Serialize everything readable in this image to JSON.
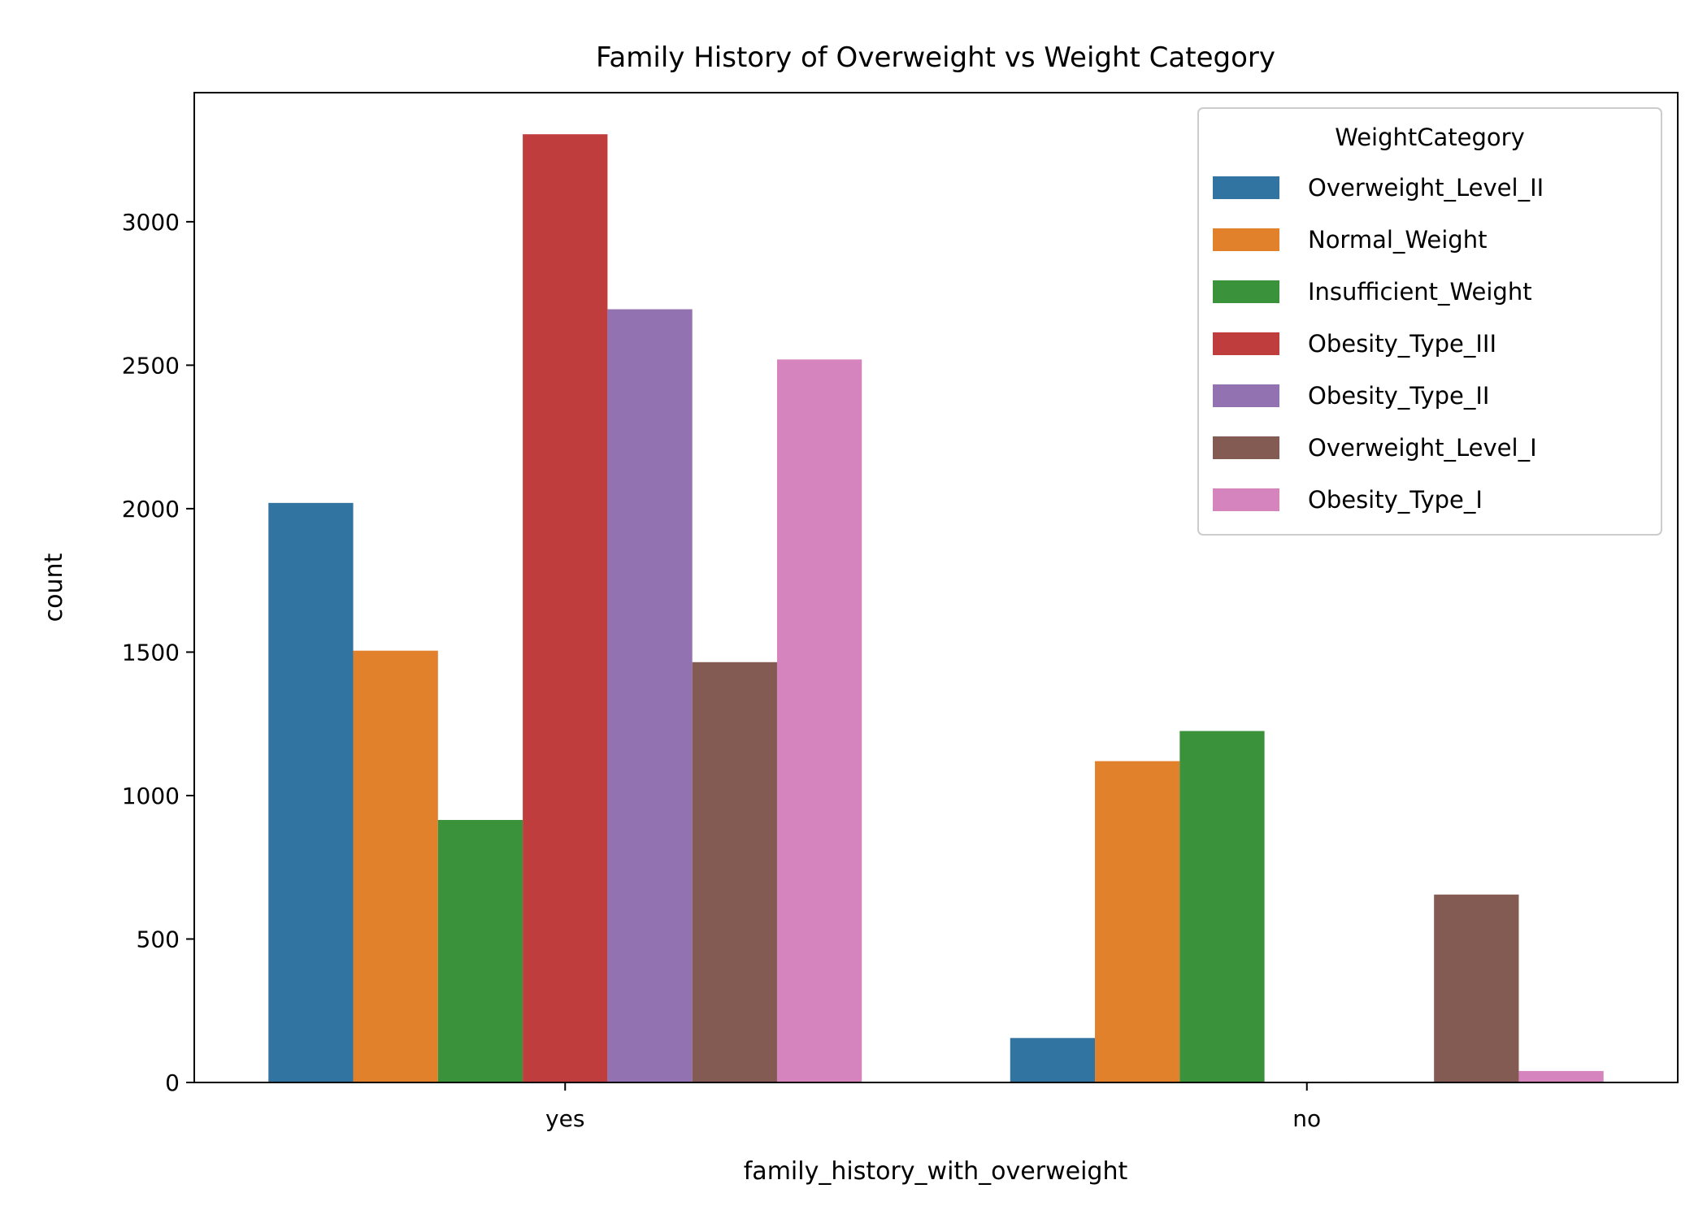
{
  "chart_data": {
    "type": "bar",
    "title": "Family History of Overweight vs Weight Category",
    "xlabel": "family_history_with_overweight",
    "ylabel": "count",
    "categories": [
      "yes",
      "no"
    ],
    "ylim": [
      0,
      3450
    ],
    "yticks": [
      0,
      500,
      1000,
      1500,
      2000,
      2500,
      3000
    ],
    "grid": false,
    "legend": {
      "title": "WeightCategory",
      "position": "top-right"
    },
    "series": [
      {
        "name": "Overweight_Level_II",
        "color": "#3274a1",
        "values": [
          2020,
          155
        ]
      },
      {
        "name": "Normal_Weight",
        "color": "#e1812c",
        "values": [
          1505,
          1120
        ]
      },
      {
        "name": "Insufficient_Weight",
        "color": "#3a923a",
        "values": [
          915,
          1225
        ]
      },
      {
        "name": "Obesity_Type_III",
        "color": "#c03d3e",
        "values": [
          3305,
          0
        ]
      },
      {
        "name": "Obesity_Type_II",
        "color": "#9372b2",
        "values": [
          2695,
          3
        ]
      },
      {
        "name": "Overweight_Level_I",
        "color": "#845b53",
        "values": [
          1465,
          655
        ]
      },
      {
        "name": "Obesity_Type_I",
        "color": "#d684bd",
        "values": [
          2520,
          40
        ]
      }
    ]
  }
}
